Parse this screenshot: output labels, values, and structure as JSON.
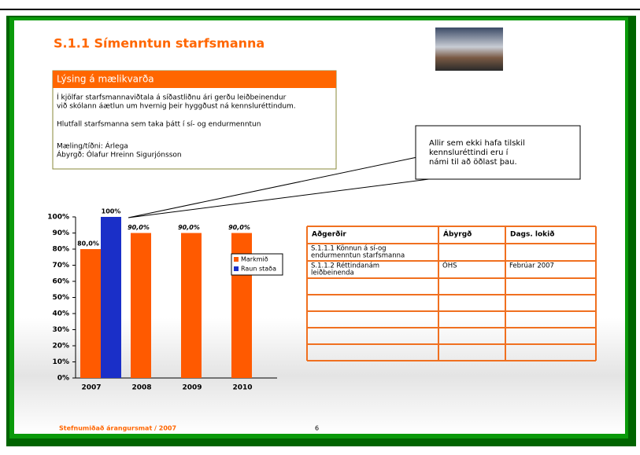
{
  "title": "S.1.1 Símenntun starfsmanna",
  "description": {
    "heading": "Lýsing á mælikvarða",
    "lines": [
      "Í kjölfar starfsmannaviðtala á síðastliðnu ári gerðu leiðbeinendur",
      "við skólann áætlun um hvernig þeir hyggðust ná kennsluréttindum."
    ],
    "measure": "Hlutfall starfsmanna sem taka þátt í sí- og endurmenntun",
    "frequency": "Mæling/tíðni: Árlega",
    "owner": "Ábyrgð: Ólafur Hreinn Sigurjónsson"
  },
  "callout": {
    "lines": [
      "Allir sem ekki hafa tilskil",
      "kennsluréttindi eru í",
      "námi til að öðlast þau."
    ]
  },
  "chart_data": {
    "type": "bar",
    "categories": [
      "2007",
      "2008",
      "2009",
      "2010"
    ],
    "series": [
      {
        "name": "Markmið",
        "color": "#ff5a00",
        "values": [
          80,
          90,
          90,
          90
        ],
        "value_labels": [
          "80,0%",
          "90,0%",
          "90,0%",
          "90,0%"
        ]
      },
      {
        "name": "Raun staða",
        "color": "#1a2fc8",
        "values": [
          100,
          null,
          null,
          null
        ],
        "value_labels": [
          "100%",
          null,
          null,
          null
        ]
      }
    ],
    "ylim": [
      0,
      100
    ],
    "yticks": [
      {
        "value": 0,
        "label": "0%"
      },
      {
        "value": 10,
        "label": "10%"
      },
      {
        "value": 20,
        "label": "20%"
      },
      {
        "value": 30,
        "label": "30%"
      },
      {
        "value": 40,
        "label": "40%"
      },
      {
        "value": 50,
        "label": "50%"
      },
      {
        "value": 60,
        "label": "60%"
      },
      {
        "value": 70,
        "label": "70%"
      },
      {
        "value": 80,
        "label": "80%"
      },
      {
        "value": 90,
        "label": "90%"
      },
      {
        "value": 100,
        "label": "100%"
      }
    ],
    "legend": "right"
  },
  "table": {
    "header": [
      "Aðgerðir",
      "Ábyrgð",
      "Dags. lokið"
    ],
    "rows": [
      {
        "action": [
          "S.1.1.1 Könnun á sí-og",
          "endurmenntun starfsmanna"
        ]
      },
      {
        "action": [
          "S.1.1.2 Réttindanám",
          "leiðbeinenda"
        ],
        "owner": "ÓHS",
        "date": "Febrúar 2007"
      }
    ]
  },
  "footer": {
    "text": "Stefnumiðað árangursmat / 2007",
    "page": "6"
  }
}
